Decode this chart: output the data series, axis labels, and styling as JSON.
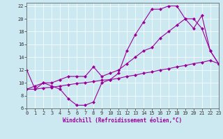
{
  "background_color": "#cce8f0",
  "plot_bg_color": "#cce8f0",
  "line_color": "#990099",
  "marker": "D",
  "marker_size": 2,
  "xlabel": "Windchill (Refroidissement éolien,°C)",
  "xlim": [
    0,
    23
  ],
  "ylim": [
    6,
    22.5
  ],
  "yticks": [
    6,
    8,
    10,
    12,
    14,
    16,
    18,
    20,
    22
  ],
  "xticks": [
    0,
    1,
    2,
    3,
    4,
    5,
    6,
    7,
    8,
    9,
    10,
    11,
    12,
    13,
    14,
    15,
    16,
    17,
    18,
    19,
    20,
    21,
    22,
    23
  ],
  "series": [
    {
      "x": [
        0,
        1,
        2,
        3,
        4,
        5,
        6,
        7,
        8,
        9,
        10,
        11,
        12,
        13,
        14,
        15,
        16,
        17,
        18,
        19,
        20,
        21,
        22,
        23
      ],
      "y": [
        12,
        9,
        10,
        9.5,
        9,
        7.5,
        6.5,
        6.5,
        7,
        10,
        10.5,
        11.5,
        15,
        17.5,
        19.5,
        21.5,
        21.5,
        22,
        22,
        20,
        18.5,
        20.5,
        15,
        13
      ]
    },
    {
      "x": [
        0,
        1,
        2,
        3,
        4,
        5,
        6,
        7,
        8,
        9,
        10,
        11,
        12,
        13,
        14,
        15,
        16,
        17,
        18,
        19,
        20,
        21,
        22,
        23
      ],
      "y": [
        9,
        9.5,
        10,
        10,
        10.5,
        11,
        11,
        11,
        12.5,
        11,
        11.5,
        12,
        13,
        14,
        15,
        15.5,
        17,
        18,
        19,
        20,
        20,
        18.5,
        15,
        13
      ]
    },
    {
      "x": [
        0,
        1,
        2,
        3,
        4,
        5,
        6,
        7,
        8,
        9,
        10,
        11,
        12,
        13,
        14,
        15,
        16,
        17,
        18,
        19,
        20,
        21,
        22,
        23
      ],
      "y": [
        9,
        9,
        9.2,
        9.3,
        9.5,
        9.7,
        9.9,
        10.0,
        10.2,
        10.4,
        10.5,
        10.7,
        11,
        11.2,
        11.5,
        11.7,
        12,
        12.2,
        12.5,
        12.7,
        13,
        13.2,
        13.5,
        13
      ]
    }
  ]
}
